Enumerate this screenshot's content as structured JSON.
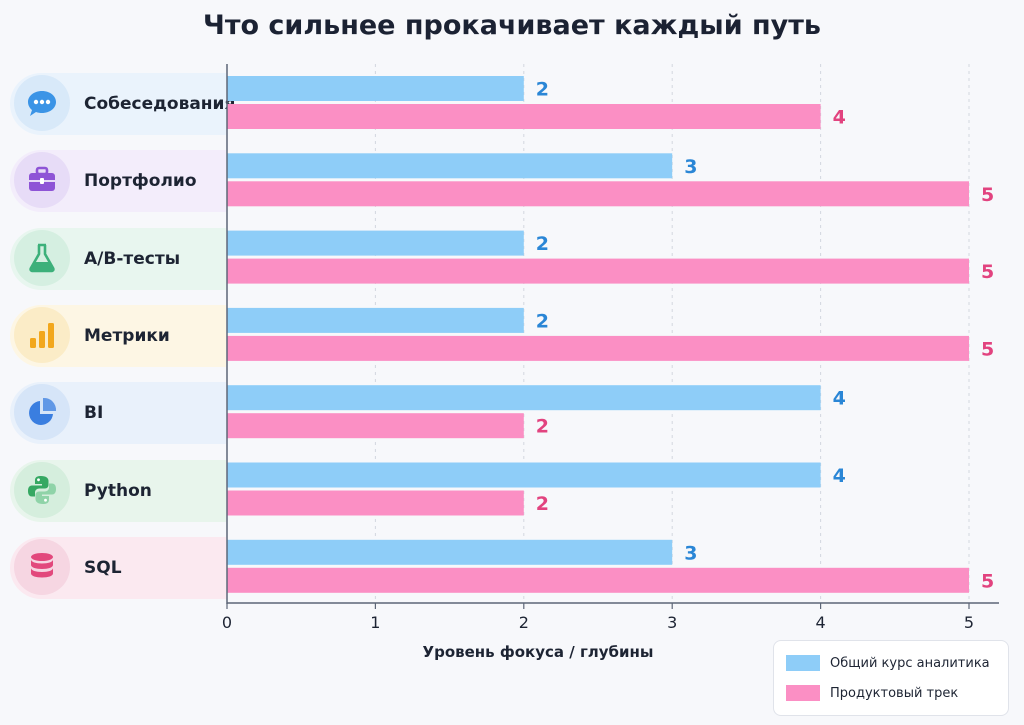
{
  "title": "Что сильнее прокачивает каждый путь",
  "xlabel": "Уровень фокуса / глубины",
  "colors": {
    "series1": "#8ecdf8",
    "series2": "#fb8fc4",
    "label1": "#2a86d6",
    "label2": "#e2437f"
  },
  "categories": [
    {
      "label": "Собеседования",
      "icon": "chat-bubble-icon",
      "icon_color": "#3b94e6",
      "bg": "#eaf3fc",
      "circle": "#d8e9f9"
    },
    {
      "label": "Портфолио",
      "icon": "briefcase-icon",
      "icon_color": "#8e54d6",
      "bg": "#f3edfb",
      "circle": "#e7dcf7"
    },
    {
      "label": "A/B-тесты",
      "icon": "flask-icon",
      "icon_color": "#3cb07a",
      "bg": "#e8f6ef",
      "circle": "#d5efe1"
    },
    {
      "label": "Метрики",
      "icon": "bar-chart-icon",
      "icon_color": "#f2a71c",
      "bg": "#fdf6e4",
      "circle": "#fbecc7"
    },
    {
      "label": "BI",
      "icon": "pie-chart-icon",
      "icon_color": "#3a7ee0",
      "bg": "#e9f1fb",
      "circle": "#d6e5f8"
    },
    {
      "label": "Python",
      "icon": "python-icon",
      "icon_color": "#35a862",
      "bg": "#e8f5ec",
      "circle": "#d5eedd"
    },
    {
      "label": "SQL",
      "icon": "database-icon",
      "icon_color": "#e2487c",
      "bg": "#fbe9f0",
      "circle": "#f6d6e2"
    }
  ],
  "legend": [
    {
      "label": "Общий курс аналитика",
      "color": "#8ecdf8"
    },
    {
      "label": "Продуктовый трек",
      "color": "#fb8fc4"
    }
  ],
  "chart_data": {
    "type": "bar",
    "orientation": "horizontal",
    "title": "Что сильнее прокачивает каждый путь",
    "xlabel": "Уровень фокуса / глубины",
    "categories": [
      "Собеседования",
      "Портфолио",
      "A/B-тесты",
      "Метрики",
      "BI",
      "Python",
      "SQL"
    ],
    "series": [
      {
        "name": "Общий курс аналитика",
        "values": [
          2,
          3,
          2,
          2,
          4,
          4,
          3
        ]
      },
      {
        "name": "Продуктовый трек",
        "values": [
          4,
          5,
          5,
          5,
          2,
          2,
          5
        ]
      }
    ],
    "xlim": [
      0,
      5
    ],
    "xticks": [
      0,
      1,
      2,
      3,
      4,
      5
    ],
    "grid": true,
    "legend_position": "bottom-right"
  }
}
